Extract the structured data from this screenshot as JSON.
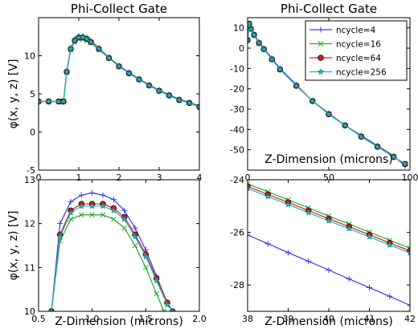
{
  "chart_data": [
    {
      "type": "line",
      "title": "Phi-Collect Gate",
      "xlabel": "",
      "ylabel": "φ(x, y, z) [V]",
      "xlim": [
        0,
        4
      ],
      "ylim": [
        -5,
        15
      ],
      "xticks": [
        "0",
        "1",
        "2",
        "3",
        "4"
      ],
      "yticks": [
        "-5",
        "0",
        "5",
        "10"
      ],
      "series": [
        {
          "name": "ncycle=4",
          "x": [
            0,
            0.25,
            0.5,
            0.6,
            0.62,
            0.7,
            0.8,
            0.9,
            1.0,
            1.1,
            1.2,
            1.3,
            1.5,
            1.75,
            2.0,
            2.25,
            2.5,
            2.75,
            3.0,
            3.25,
            3.5,
            3.75,
            4.0
          ],
          "y": [
            4.0,
            4.0,
            4.0,
            4.0,
            4.0,
            8.0,
            11.0,
            12.2,
            12.6,
            12.6,
            12.4,
            12.0,
            11.0,
            9.8,
            8.7,
            7.8,
            7.0,
            6.2,
            5.5,
            4.9,
            4.3,
            3.9,
            3.4
          ]
        },
        {
          "name": "ncycle=16",
          "x": [
            0,
            0.25,
            0.5,
            0.6,
            0.62,
            0.7,
            0.8,
            0.9,
            1.0,
            1.1,
            1.2,
            1.3,
            1.5,
            1.75,
            2.0,
            2.25,
            2.5,
            2.75,
            3.0,
            3.25,
            3.5,
            3.75,
            4.0
          ],
          "y": [
            4.0,
            4.0,
            4.0,
            4.0,
            4.0,
            7.8,
            10.8,
            11.8,
            12.2,
            12.2,
            12.0,
            11.7,
            10.8,
            9.7,
            8.6,
            7.7,
            6.9,
            6.1,
            5.4,
            4.8,
            4.2,
            3.8,
            3.3
          ]
        },
        {
          "name": "ncycle=64",
          "x": [
            0,
            0.25,
            0.5,
            0.6,
            0.62,
            0.7,
            0.8,
            0.9,
            1.0,
            1.1,
            1.2,
            1.3,
            1.5,
            1.75,
            2.0,
            2.25,
            2.5,
            2.75,
            3.0,
            3.25,
            3.5,
            3.75,
            4.0
          ],
          "y": [
            4.0,
            4.0,
            4.0,
            4.0,
            4.0,
            7.9,
            10.9,
            12.0,
            12.4,
            12.4,
            12.2,
            11.8,
            10.9,
            9.7,
            8.6,
            7.7,
            6.9,
            6.1,
            5.4,
            4.8,
            4.2,
            3.8,
            3.3
          ]
        },
        {
          "name": "ncycle=256",
          "x": [
            0,
            0.25,
            0.5,
            0.6,
            0.62,
            0.7,
            0.8,
            0.9,
            1.0,
            1.1,
            1.2,
            1.3,
            1.5,
            1.75,
            2.0,
            2.25,
            2.5,
            2.75,
            3.0,
            3.25,
            3.5,
            3.75,
            4.0
          ],
          "y": [
            4.0,
            4.0,
            4.0,
            4.0,
            4.0,
            7.9,
            10.9,
            12.0,
            12.4,
            12.4,
            12.2,
            11.8,
            10.9,
            9.7,
            8.6,
            7.7,
            6.9,
            6.1,
            5.4,
            4.8,
            4.2,
            3.8,
            3.3
          ]
        }
      ]
    },
    {
      "type": "line",
      "title": "Phi-Collect Gate",
      "xlabel": "Z-Dimension (microns)",
      "ylabel": "",
      "xlim": [
        0,
        100
      ],
      "ylim": [
        -60,
        15
      ],
      "xticks": [
        "0",
        "50",
        "100"
      ],
      "yticks": [
        "10",
        "0",
        "-10",
        "-20",
        "-30",
        "-40",
        "-50"
      ],
      "legend": "upper right",
      "series": [
        {
          "name": "ncycle=4",
          "x": [
            0,
            1,
            2,
            4,
            7,
            10,
            15,
            20,
            30,
            40,
            50,
            60,
            70,
            80,
            90,
            97
          ],
          "y": [
            4,
            12,
            10,
            7,
            3,
            0,
            -5,
            -10,
            -18,
            -26,
            -32,
            -38,
            -43,
            -48,
            -53,
            -58
          ]
        },
        {
          "name": "ncycle=16",
          "x": [
            0,
            1,
            2,
            4,
            7,
            10,
            15,
            20,
            30,
            40,
            50,
            60,
            70,
            80,
            90,
            97
          ],
          "y": [
            4,
            12,
            9.5,
            6.5,
            2.5,
            -0.5,
            -5.5,
            -10.5,
            -18.5,
            -26,
            -32.5,
            -38,
            -43.5,
            -48.5,
            -53.5,
            -57
          ]
        },
        {
          "name": "ncycle=64",
          "x": [
            0,
            1,
            2,
            4,
            7,
            10,
            15,
            20,
            30,
            40,
            50,
            60,
            70,
            80,
            90,
            97
          ],
          "y": [
            4,
            12,
            9.5,
            6.5,
            2.5,
            -0.5,
            -5.5,
            -10.5,
            -18.5,
            -26,
            -32.5,
            -38,
            -43.5,
            -48.5,
            -53.5,
            -57
          ]
        },
        {
          "name": "ncycle=256",
          "x": [
            0,
            1,
            2,
            4,
            7,
            10,
            15,
            20,
            30,
            40,
            50,
            60,
            70,
            80,
            90,
            97
          ],
          "y": [
            4,
            12,
            9.5,
            6.5,
            2.5,
            -0.5,
            -5.5,
            -10.5,
            -18.5,
            -26,
            -32.5,
            -38,
            -43.5,
            -48.5,
            -53.5,
            -57
          ]
        }
      ]
    },
    {
      "type": "line",
      "title": "",
      "xlabel": "Z-Dimension (microns)",
      "ylabel": "φ(x, y, z) [V]",
      "xlim": [
        0.5,
        2.0
      ],
      "ylim": [
        10,
        13
      ],
      "xticks": [
        "0.5",
        "1.0",
        "1.5",
        "2.0"
      ],
      "yticks": [
        "10",
        "11",
        "12",
        "13"
      ],
      "series": [
        {
          "name": "ncycle=4",
          "x": [
            0.62,
            0.7,
            0.8,
            0.9,
            1.0,
            1.1,
            1.2,
            1.3,
            1.4,
            1.5,
            1.6,
            1.7
          ],
          "y": [
            10.0,
            12.0,
            12.5,
            12.65,
            12.7,
            12.65,
            12.55,
            12.3,
            11.9,
            11.4,
            10.8,
            10.2
          ]
        },
        {
          "name": "ncycle=16",
          "x": [
            0.62,
            0.7,
            0.8,
            0.9,
            1.0,
            1.1,
            1.2,
            1.3,
            1.4,
            1.5,
            1.6,
            1.67
          ],
          "y": [
            10.0,
            11.6,
            12.1,
            12.2,
            12.2,
            12.2,
            12.1,
            11.9,
            11.5,
            11.0,
            10.4,
            10.0
          ]
        },
        {
          "name": "ncycle=64",
          "x": [
            0.62,
            0.7,
            0.8,
            0.9,
            1.0,
            1.1,
            1.2,
            1.3,
            1.4,
            1.5,
            1.6,
            1.7,
            1.75
          ],
          "y": [
            10.0,
            11.75,
            12.3,
            12.45,
            12.45,
            12.45,
            12.35,
            12.15,
            11.75,
            11.3,
            10.75,
            10.2,
            10.0
          ]
        },
        {
          "name": "ncycle=256",
          "x": [
            0.62,
            0.7,
            0.8,
            0.9,
            1.0,
            1.1,
            1.2,
            1.3,
            1.4,
            1.5,
            1.6,
            1.7,
            1.75
          ],
          "y": [
            10.0,
            11.7,
            12.25,
            12.4,
            12.4,
            12.4,
            12.3,
            12.1,
            11.7,
            11.25,
            10.7,
            10.15,
            10.0
          ]
        }
      ]
    },
    {
      "type": "line",
      "title": "",
      "xlabel": "Z-Dimension (microns)",
      "ylabel": "",
      "xlim": [
        38,
        42
      ],
      "ylim": [
        -29,
        -24
      ],
      "xticks": [
        "38",
        "39",
        "40",
        "41",
        "42"
      ],
      "yticks": [
        "-24",
        "-26",
        "-28"
      ],
      "series": [
        {
          "name": "ncycle=4",
          "x": [
            38,
            38.5,
            39,
            39.5,
            40,
            40.5,
            41,
            41.5,
            42
          ],
          "y": [
            -26.1,
            -26.43,
            -26.77,
            -27.1,
            -27.43,
            -27.77,
            -28.1,
            -28.43,
            -28.77
          ]
        },
        {
          "name": "ncycle=16",
          "x": [
            38,
            38.5,
            39,
            39.5,
            40,
            40.5,
            41,
            41.5,
            42
          ],
          "y": [
            -24.15,
            -24.46,
            -24.76,
            -25.07,
            -25.38,
            -25.68,
            -25.99,
            -26.3,
            -26.6
          ]
        },
        {
          "name": "ncycle=64",
          "x": [
            38,
            38.5,
            39,
            39.5,
            40,
            40.5,
            41,
            41.5,
            42
          ],
          "y": [
            -24.25,
            -24.56,
            -24.86,
            -25.17,
            -25.48,
            -25.78,
            -26.09,
            -26.4,
            -26.7
          ]
        },
        {
          "name": "ncycle=256",
          "x": [
            38,
            38.5,
            39,
            39.5,
            40,
            40.5,
            41,
            41.5,
            42
          ],
          "y": [
            -24.33,
            -24.64,
            -24.94,
            -25.25,
            -25.56,
            -25.86,
            -26.17,
            -26.48,
            -26.78
          ]
        }
      ]
    }
  ],
  "styles": {
    "ncycle=4": {
      "color": "#3a3af0",
      "marker": "plus"
    },
    "ncycle=16": {
      "color": "#2aa82a",
      "marker": "x"
    },
    "ncycle=64": {
      "color": "#d42020",
      "marker": "circle"
    },
    "ncycle=256": {
      "color": "#1fb8b8",
      "marker": "star"
    }
  }
}
